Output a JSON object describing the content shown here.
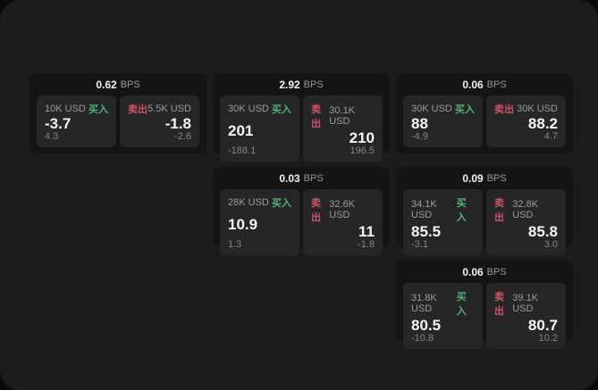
{
  "labels": {
    "bps": "BPS",
    "buy": "买入",
    "sell": "卖出"
  },
  "colors": {
    "background": "#0a0a0a",
    "panel": "#1c1c1d",
    "card": "#141415",
    "pane": "#262628",
    "buy_green": "#4fb374",
    "sell_red": "#cf5361",
    "text_primary": "#f5f5f5",
    "text_muted": "#9b9b9b"
  },
  "cards": [
    {
      "bps": "0.62",
      "buy_amount": "10K USD",
      "sell_amount": "5.5K USD",
      "buy_price": "-3.7",
      "sell_price": "-1.8",
      "buy_delta": "4.3",
      "sell_delta": "-2.6"
    },
    {
      "bps": "2.92",
      "buy_amount": "30K USD",
      "sell_amount": "30.1K USD",
      "buy_price": "201",
      "sell_price": "210",
      "buy_delta": "-188.1",
      "sell_delta": "196.5"
    },
    {
      "bps": "0.06",
      "buy_amount": "30K USD",
      "sell_amount": "30K USD",
      "buy_price": "88",
      "sell_price": "88.2",
      "buy_delta": "-4.9",
      "sell_delta": "4.7"
    },
    {
      "bps": "0.03",
      "buy_amount": "28K USD",
      "sell_amount": "32.6K USD",
      "buy_price": "10.9",
      "sell_price": "11",
      "buy_delta": "1.3",
      "sell_delta": "-1.8"
    },
    {
      "bps": "0.09",
      "buy_amount": "34.1K USD",
      "sell_amount": "32.8K USD",
      "buy_price": "85.5",
      "sell_price": "85.8",
      "buy_delta": "-3.1",
      "sell_delta": "3.0"
    },
    {
      "bps": "0.06",
      "buy_amount": "31.8K USD",
      "sell_amount": "39.1K USD",
      "buy_price": "80.5",
      "sell_price": "80.7",
      "buy_delta": "-10.8",
      "sell_delta": "10.2"
    }
  ]
}
